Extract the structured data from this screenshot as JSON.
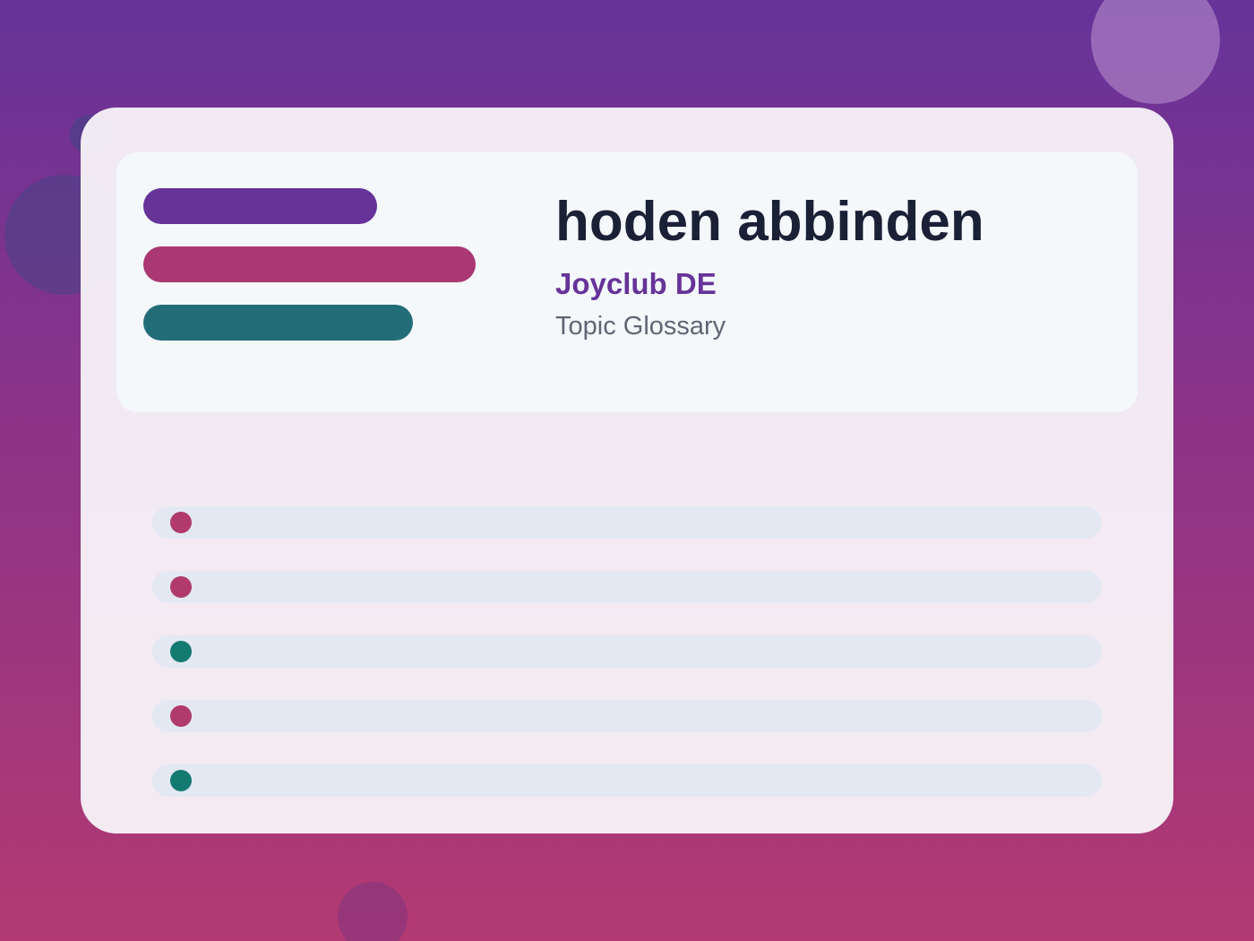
{
  "header": {
    "title": "hoden abbinden",
    "brand": "Joyclub DE",
    "subtitle": "Topic Glossary"
  }
}
